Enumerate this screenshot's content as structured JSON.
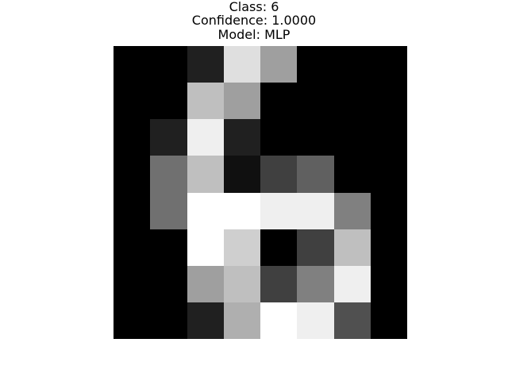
{
  "figure": {
    "title_lines": [
      "Class: 6",
      "Confidence: 1.0000",
      "Model: MLP"
    ]
  },
  "chart_data": {
    "type": "heatmap",
    "colormap": "gray",
    "value_range": [
      0,
      16
    ],
    "rows": 8,
    "cols": 8,
    "values": [
      [
        0,
        0,
        2,
        14,
        10,
        0,
        0,
        0
      ],
      [
        0,
        0,
        12,
        10,
        0,
        0,
        0,
        0
      ],
      [
        0,
        2,
        15,
        2,
        0,
        0,
        0,
        0
      ],
      [
        0,
        7,
        12,
        1,
        4,
        6,
        0,
        0
      ],
      [
        0,
        7,
        16,
        16,
        15,
        15,
        8,
        0
      ],
      [
        0,
        0,
        16,
        13,
        0,
        4,
        12,
        0
      ],
      [
        0,
        0,
        10,
        12,
        4,
        8,
        15,
        0
      ],
      [
        0,
        0,
        2,
        11,
        16,
        15,
        5,
        0
      ]
    ],
    "title": "Class: 6\nConfidence: 1.0000\nModel: MLP",
    "axes_visible": false
  }
}
